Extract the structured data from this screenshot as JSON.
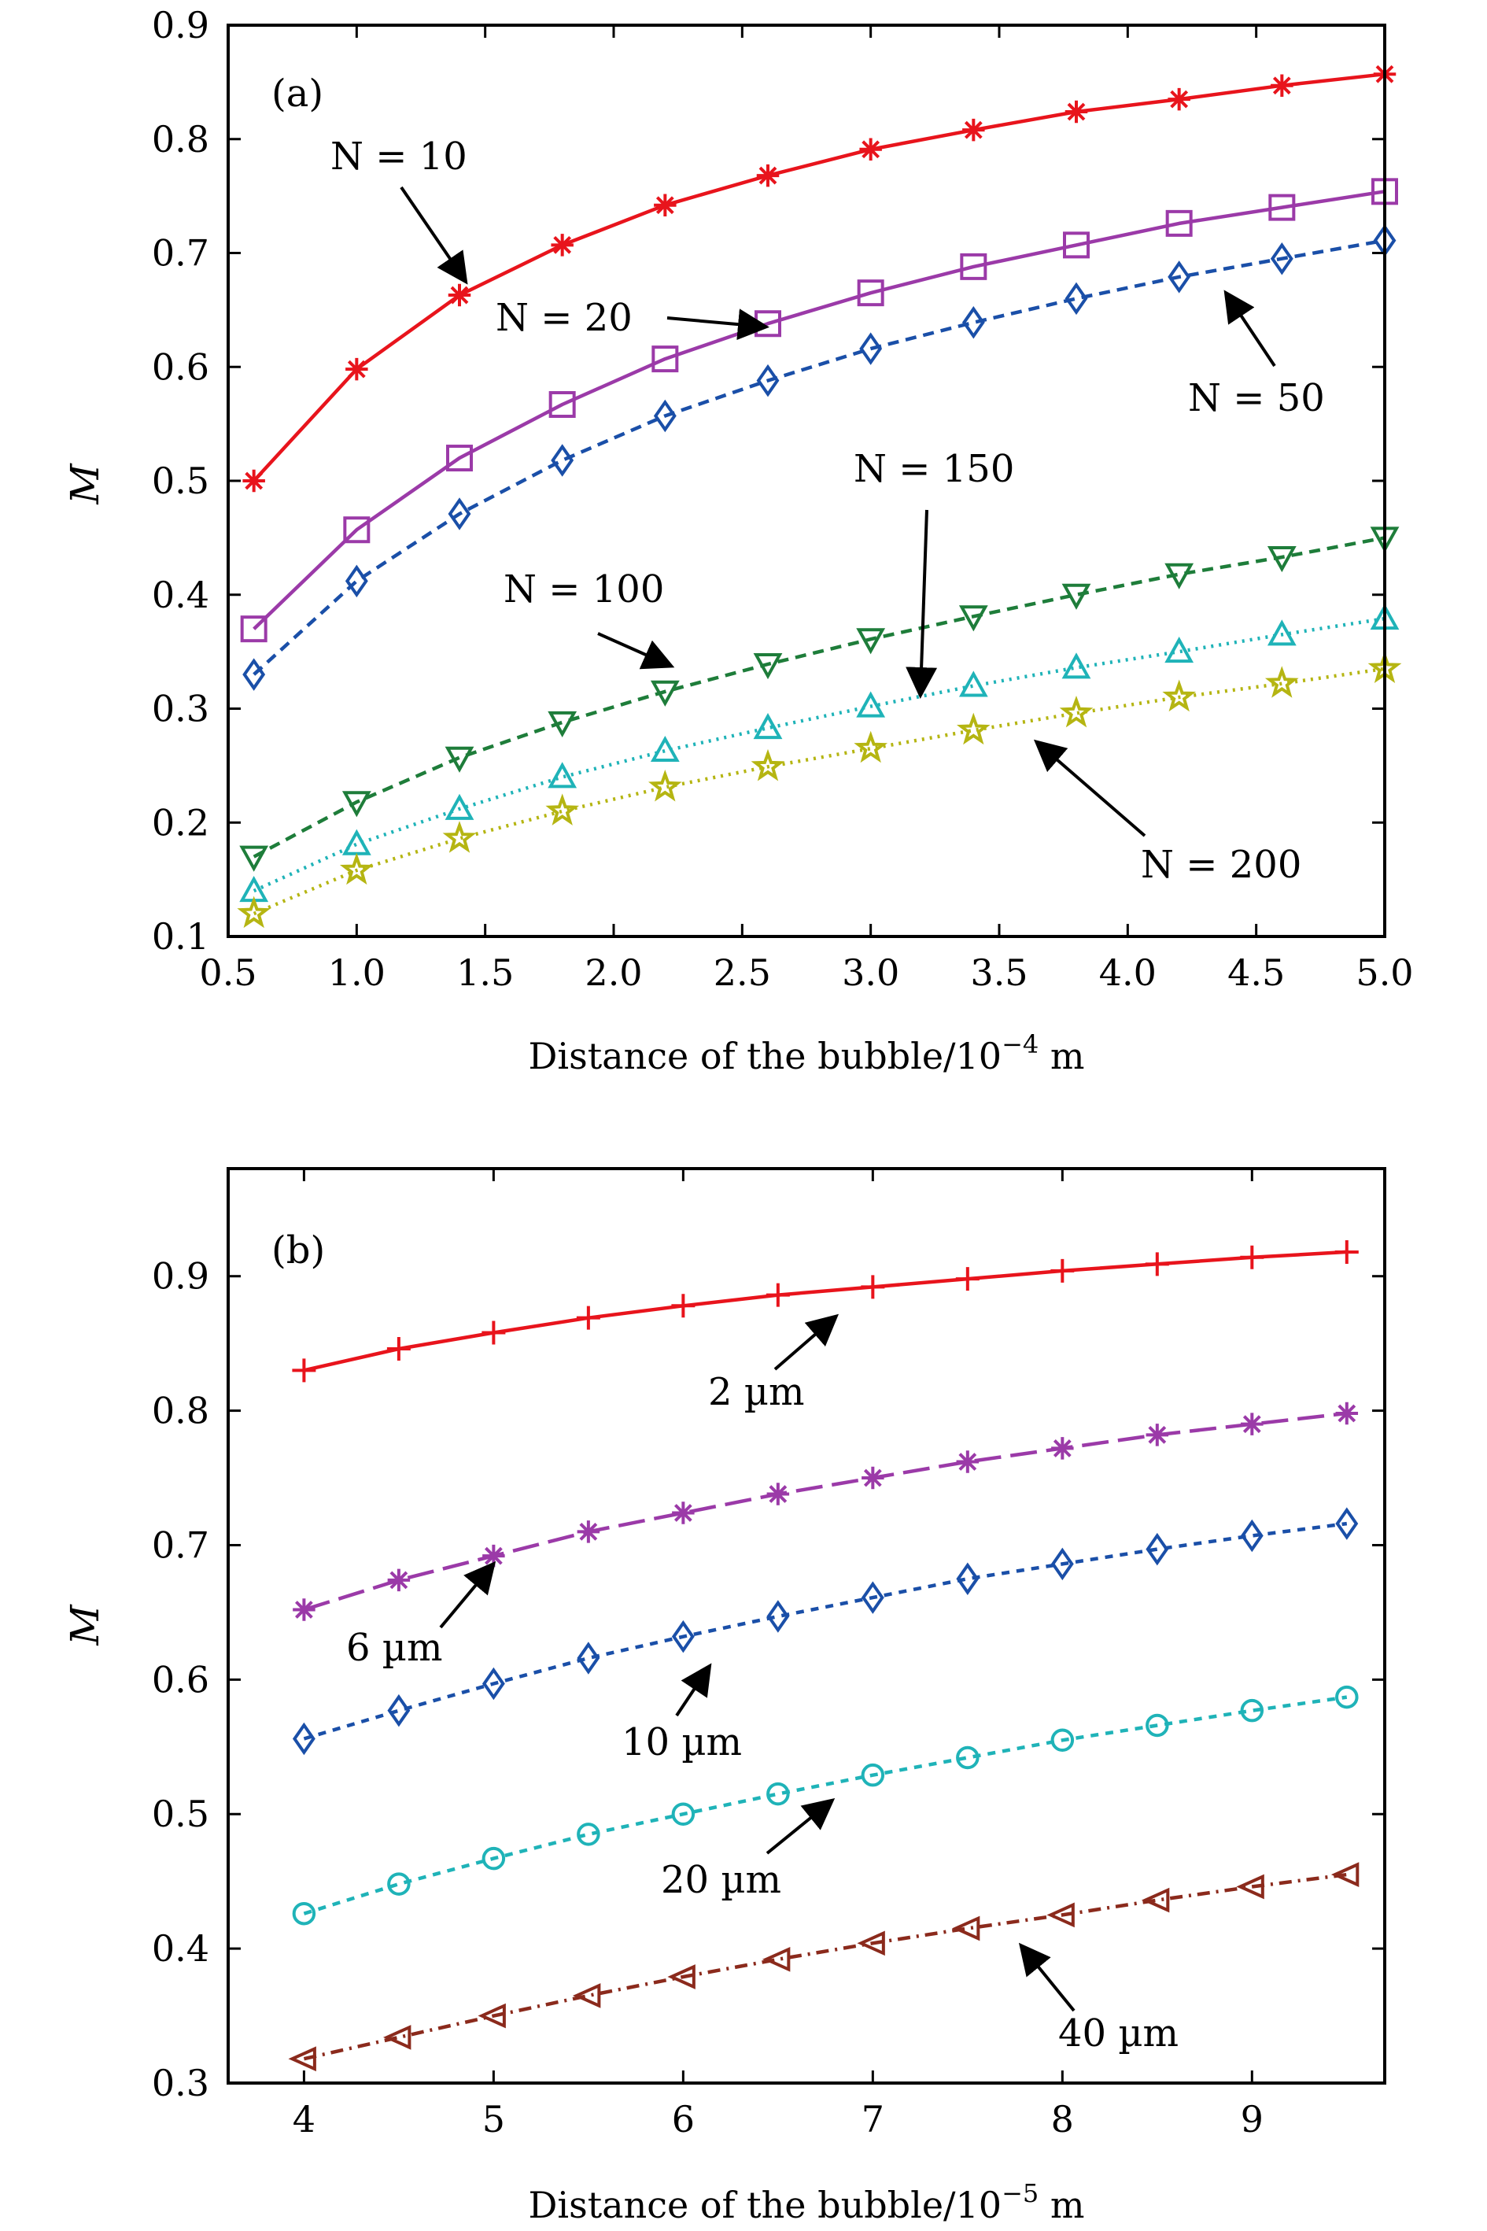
{
  "chart_data": [
    {
      "type": "line",
      "panel_label": "(a)",
      "xlabel": "Distance of the bubble/10",
      "xlabel_exp": "−4",
      "xlabel_unit": "m",
      "ylabel": "M",
      "xlim": [
        0.5,
        5.0
      ],
      "ylim": [
        0.1,
        0.9
      ],
      "xticks": [
        "0.5",
        "1.0",
        "1.5",
        "2.0",
        "2.5",
        "3.0",
        "3.5",
        "4.0",
        "4.5",
        "5.0"
      ],
      "xtick_values": [
        0.5,
        1.0,
        1.5,
        2.0,
        2.5,
        3.0,
        3.5,
        4.0,
        4.5,
        5.0
      ],
      "yticks": [
        "0.1",
        "0.2",
        "0.3",
        "0.4",
        "0.5",
        "0.6",
        "0.7",
        "0.8",
        "0.9"
      ],
      "ytick_values": [
        0.1,
        0.2,
        0.3,
        0.4,
        0.5,
        0.6,
        0.7,
        0.8,
        0.9
      ],
      "x": [
        0.6,
        1.0,
        1.4,
        1.8,
        2.2,
        2.6,
        3.0,
        3.4,
        3.8,
        4.2,
        4.6,
        5.0
      ],
      "series": [
        {
          "name": "N = 10",
          "color": "#e8141c",
          "marker": "asterisk",
          "dash": "",
          "values": [
            0.5,
            0.598,
            0.663,
            0.707,
            0.742,
            0.768,
            0.791,
            0.808,
            0.824,
            0.835,
            0.847,
            0.857
          ]
        },
        {
          "name": "N = 20",
          "color": "#9b3aa8",
          "marker": "square",
          "dash": "",
          "values": [
            0.37,
            0.457,
            0.52,
            0.567,
            0.607,
            0.638,
            0.665,
            0.688,
            0.707,
            0.726,
            0.74,
            0.754
          ]
        },
        {
          "name": "N = 50",
          "color": "#1a4fa8",
          "marker": "diamond",
          "dash": "14,9",
          "values": [
            0.33,
            0.412,
            0.471,
            0.518,
            0.557,
            0.588,
            0.616,
            0.639,
            0.66,
            0.679,
            0.695,
            0.711
          ]
        },
        {
          "name": "N = 100",
          "color": "#1e7d3a",
          "marker": "triangle-down",
          "dash": "14,9",
          "values": [
            0.17,
            0.218,
            0.257,
            0.288,
            0.315,
            0.339,
            0.361,
            0.381,
            0.4,
            0.418,
            0.433,
            0.45
          ]
        },
        {
          "name": "N = 150",
          "color": "#1fb3b8",
          "marker": "triangle-up",
          "dash": "3,7",
          "values": [
            0.14,
            0.181,
            0.212,
            0.24,
            0.263,
            0.283,
            0.302,
            0.32,
            0.336,
            0.35,
            0.365,
            0.379
          ]
        },
        {
          "name": "N = 200",
          "color": "#b5b512",
          "marker": "star",
          "dash": "3,7",
          "values": [
            0.12,
            0.158,
            0.186,
            0.21,
            0.231,
            0.249,
            0.265,
            0.281,
            0.296,
            0.31,
            0.322,
            0.335
          ]
        }
      ],
      "annotations": [
        {
          "text": "N = 10"
        },
        {
          "text": "N = 20"
        },
        {
          "text": "N = 50"
        },
        {
          "text": "N = 100"
        },
        {
          "text": "N = 150"
        },
        {
          "text": "N = 200"
        }
      ]
    },
    {
      "type": "line",
      "panel_label": "(b)",
      "xlabel": "Distance of the bubble/10",
      "xlabel_exp": "−5",
      "xlabel_unit": "m",
      "ylabel": "M",
      "xlim": [
        3.6,
        9.7
      ],
      "ylim": [
        0.3,
        0.98
      ],
      "xticks": [
        "4",
        "5",
        "6",
        "7",
        "8",
        "9"
      ],
      "xtick_values": [
        4,
        5,
        6,
        7,
        8,
        9
      ],
      "yticks": [
        "0.3",
        "0.4",
        "0.5",
        "0.6",
        "0.7",
        "0.8",
        "0.9"
      ],
      "ytick_values": [
        0.3,
        0.4,
        0.5,
        0.6,
        0.7,
        0.8,
        0.9
      ],
      "x": [
        4.0,
        4.5,
        5.0,
        5.5,
        6.0,
        6.5,
        7.0,
        7.5,
        8.0,
        8.5,
        9.0,
        9.5
      ],
      "series": [
        {
          "name": "2 µm",
          "color": "#e8141c",
          "marker": "plus",
          "dash": "",
          "values": [
            0.83,
            0.846,
            0.858,
            0.869,
            0.878,
            0.886,
            0.892,
            0.898,
            0.904,
            0.909,
            0.914,
            0.918
          ]
        },
        {
          "name": "6 µm",
          "color": "#9b3aa8",
          "marker": "asterisk",
          "dash": "34,12",
          "values": [
            0.652,
            0.674,
            0.692,
            0.71,
            0.724,
            0.738,
            0.75,
            0.762,
            0.772,
            0.782,
            0.79,
            0.798
          ]
        },
        {
          "name": "10 µm",
          "color": "#1a4fa8",
          "marker": "diamond",
          "dash": "10,9",
          "values": [
            0.556,
            0.577,
            0.597,
            0.616,
            0.632,
            0.647,
            0.661,
            0.675,
            0.686,
            0.697,
            0.707,
            0.716
          ]
        },
        {
          "name": "20 µm",
          "color": "#1fb3b8",
          "marker": "circle",
          "dash": "10,9",
          "values": [
            0.426,
            0.448,
            0.467,
            0.485,
            0.5,
            0.515,
            0.529,
            0.542,
            0.555,
            0.566,
            0.577,
            0.587
          ]
        },
        {
          "name": "40 µm",
          "color": "#8b2a1c",
          "marker": "triangle-left",
          "dash": "16,8,3,8",
          "values": [
            0.318,
            0.334,
            0.35,
            0.365,
            0.379,
            0.392,
            0.404,
            0.415,
            0.425,
            0.436,
            0.446,
            0.455
          ]
        }
      ],
      "annotations": [
        {
          "text": "2 µm"
        },
        {
          "text": "6 µm"
        },
        {
          "text": "10 µm"
        },
        {
          "text": "20 µm"
        },
        {
          "text": "40 µm"
        }
      ]
    }
  ]
}
